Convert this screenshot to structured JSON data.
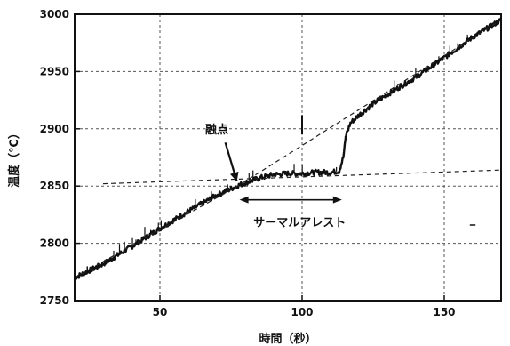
{
  "chart_data": {
    "type": "line",
    "title": "",
    "xlabel": "時間（秒）",
    "ylabel": "温度（℃）",
    "xlim": [
      20,
      170
    ],
    "ylim": [
      2750,
      3000
    ],
    "x_ticks": [
      50,
      100,
      150
    ],
    "x_tick_labels": [
      "50",
      "100",
      "150"
    ],
    "y_ticks": [
      2750,
      2800,
      2850,
      2900,
      2950,
      3000
    ],
    "y_tick_labels": [
      "2750",
      "2800",
      "2850",
      "2900",
      "2950",
      "3000"
    ],
    "grid": true,
    "series": [
      {
        "style": "solid-noisy",
        "x": [
          20,
          30,
          40,
          50,
          60,
          70,
          78,
          85,
          90,
          95,
          100,
          105,
          110,
          113,
          114.5,
          115.5,
          117,
          120,
          125,
          130,
          140,
          150,
          160,
          170
        ],
        "y": [
          2770,
          2782,
          2797,
          2813,
          2828,
          2842,
          2851,
          2857,
          2860,
          2861,
          2861,
          2862,
          2862,
          2863,
          2875,
          2895,
          2905,
          2912,
          2922,
          2930,
          2945,
          2962,
          2980,
          2995
        ]
      },
      {
        "style": "dashed-extrapolation",
        "x": [
          20,
          78,
          170
        ],
        "y": [
          2770,
          2851,
          2995
        ]
      },
      {
        "style": "dashed-plateau",
        "x": [
          30,
          170
        ],
        "y": [
          2852,
          2864
        ]
      }
    ],
    "annotations": {
      "melting_point_label": "融点",
      "thermal_arrest_label": "サーマルアレスト",
      "thermal_arrest_range": [
        78,
        114
      ],
      "melting_point_x": 78,
      "melting_point_y": 2851,
      "vertical_marker_x": 100
    }
  }
}
